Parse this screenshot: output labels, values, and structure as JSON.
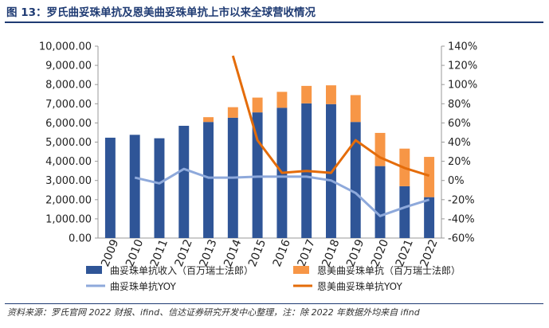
{
  "figure": {
    "title": "图 13：罗氏曲妥珠单抗及恩美曲妥珠单抗上市以来全球营收情况",
    "source": "资料来源：罗氏官网 2022 财报、ifind、信达证券研究开发中心整理，注：除 2022 年数据外均来自 ifind"
  },
  "chart_data": {
    "type": "bar",
    "stacked": true,
    "categories": [
      "2009",
      "2010",
      "2011",
      "2012",
      "2013",
      "2014",
      "2015",
      "2016",
      "2017",
      "2018",
      "2019",
      "2020",
      "2021",
      "2022"
    ],
    "y_left": {
      "lim": [
        0,
        10000
      ],
      "ticks": [
        "0.00",
        "1,000.00",
        "2,000.00",
        "3,000.00",
        "4,000.00",
        "5,000.00",
        "6,000.00",
        "7,000.00",
        "8,000.00",
        "9,000.00",
        "10,000.00"
      ]
    },
    "y_right": {
      "lim": [
        -60,
        140
      ],
      "ticks": [
        "-60%",
        "-40%",
        "-20%",
        "0%",
        "20%",
        "40%",
        "60%",
        "80%",
        "100%",
        "120%",
        "140%"
      ]
    },
    "series": [
      {
        "name": "曲妥珠单抗收入（百万瑞士法郎）",
        "kind": "bar",
        "axis": "left",
        "color": "#2f5597",
        "values": [
          5230,
          5380,
          5200,
          5850,
          6050,
          6270,
          6550,
          6790,
          7020,
          6980,
          6050,
          3750,
          2700,
          2130
        ]
      },
      {
        "name": "恩美曲妥珠单抗（百万瑞士法郎）",
        "kind": "bar",
        "axis": "left",
        "color": "#f79646",
        "values": [
          0,
          0,
          0,
          0,
          250,
          550,
          770,
          830,
          910,
          980,
          1400,
          1730,
          1960,
          2100
        ]
      },
      {
        "name": "曲妥珠单抗YOY",
        "kind": "line",
        "axis": "right",
        "color": "#8ea9db",
        "values": [
          null,
          3,
          -3,
          12,
          3,
          3,
          4,
          4,
          4,
          0,
          -13,
          -37,
          -28,
          -20
        ]
      },
      {
        "name": "恩美曲妥珠单抗YOY",
        "kind": "line",
        "axis": "right",
        "color": "#e46c0a",
        "values": [
          null,
          null,
          null,
          null,
          null,
          130,
          42,
          8,
          10,
          8,
          42,
          24,
          13,
          5
        ]
      }
    ]
  }
}
